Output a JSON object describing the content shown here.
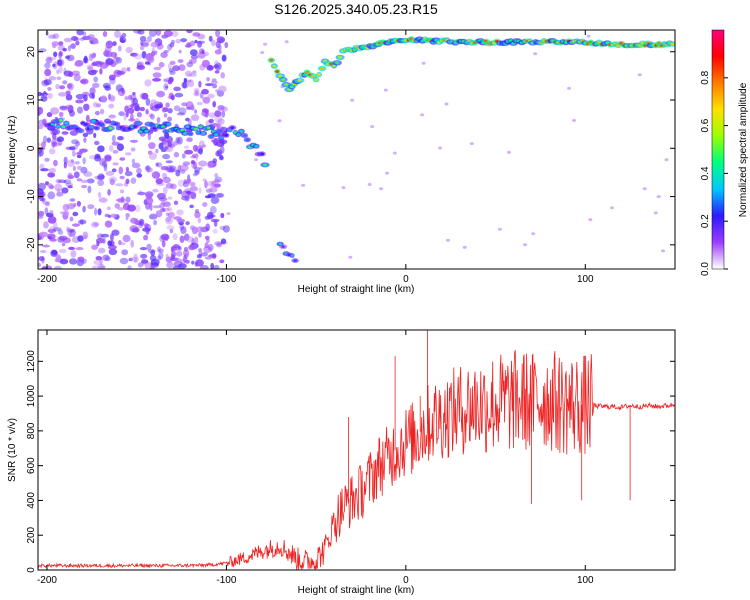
{
  "figure": {
    "title": "S126.2025.340.05.23.R15"
  },
  "chart_data": [
    {
      "type": "heatmap",
      "title": "S126.2025.340.05.23.R15",
      "xlabel": "Height of straight line (km)",
      "ylabel": "Frequency (Hz)",
      "xlim": [
        -205,
        150
      ],
      "ylim": [
        -25,
        24.5
      ],
      "x_ticks": [
        -200,
        -100,
        0,
        100
      ],
      "y_ticks": [
        -20,
        -10,
        0,
        10,
        20
      ],
      "x_tick_labels": [
        "-200",
        "-100",
        "0",
        "100"
      ],
      "y_tick_labels": [
        "-20",
        "-10",
        "0",
        "10",
        "20"
      ],
      "colorbar": {
        "label": "Normalized spectral amplitude",
        "range": [
          0,
          1
        ],
        "ticks": [
          0.0,
          0.2,
          0.4,
          0.6,
          0.8
        ],
        "tick_labels": [
          "0.0",
          "0.2",
          "0.4",
          "0.6",
          "0.8"
        ],
        "colors": [
          "#ffffff",
          "#9b3cff",
          "#2a1aff",
          "#00c8ff",
          "#00ff80",
          "#9bff00",
          "#ffe000",
          "#ff7a00",
          "#ff0000",
          "#ff0080"
        ]
      },
      "features": [
        {
          "name": "noise-region",
          "x_range": [
            -205,
            -100
          ],
          "y_range": [
            -25,
            24.5
          ],
          "amplitude": 0.15
        },
        {
          "name": "carrier-low",
          "points": [
            [
              -200,
              5
            ],
            [
              -180,
              4.5
            ],
            [
              -160,
              5
            ],
            [
              -140,
              4
            ],
            [
              -120,
              4
            ],
            [
              -110,
              3.5
            ],
            [
              -100,
              3
            ],
            [
              -95,
              4
            ],
            [
              -90,
              2
            ],
            [
              -85,
              0.5
            ],
            [
              -80,
              -2
            ],
            [
              -77,
              -3.5
            ]
          ],
          "amplitude": 0.35
        },
        {
          "name": "carrier-high",
          "points": [
            [
              -75,
              18
            ],
            [
              -70,
              15
            ],
            [
              -65,
              12
            ],
            [
              -55,
              16
            ],
            [
              -50,
              14
            ],
            [
              -45,
              18
            ],
            [
              -40,
              17
            ],
            [
              -35,
              20
            ],
            [
              -30,
              20.5
            ],
            [
              -20,
              21
            ],
            [
              -10,
              22
            ],
            [
              0,
              22.5
            ],
            [
              20,
              22.2
            ],
            [
              40,
              22
            ],
            [
              60,
              22
            ],
            [
              80,
              22
            ],
            [
              100,
              22
            ],
            [
              120,
              21.5
            ],
            [
              150,
              21.5
            ]
          ],
          "amplitude": 0.6
        },
        {
          "name": "carrier-alias",
          "points": [
            [
              -70,
              -20
            ],
            [
              -65,
              -22
            ],
            [
              -60,
              -24
            ]
          ],
          "amplitude": 0.3
        }
      ]
    },
    {
      "type": "line",
      "xlabel": "Height of straight line (km)",
      "ylabel": "SNR (10 * v/v)",
      "xlim": [
        -205,
        150
      ],
      "ylim": [
        0,
        1380
      ],
      "x_ticks": [
        -200,
        -100,
        0,
        100
      ],
      "y_ticks": [
        0,
        200,
        400,
        600,
        800,
        1000,
        1200
      ],
      "x_tick_labels": [
        "-200",
        "-100",
        "0",
        "100"
      ],
      "y_tick_labels": [
        "0",
        "200",
        "400",
        "600",
        "800",
        "1000",
        "1200"
      ],
      "series": [
        {
          "name": "SNR",
          "color": "#ee2222",
          "x": [
            -205,
            -190,
            -170,
            -150,
            -130,
            -110,
            -100,
            -90,
            -80,
            -70,
            -60,
            -55,
            -50,
            -45,
            -40,
            -35,
            -30,
            -25,
            -20,
            -15,
            -10,
            -5,
            0,
            5,
            10,
            15,
            20,
            25,
            30,
            35,
            40,
            45,
            50,
            55,
            60,
            65,
            70,
            75,
            80,
            85,
            90,
            95,
            100,
            105,
            110,
            115,
            120,
            125,
            130,
            135,
            140,
            145,
            150
          ],
          "y": [
            25,
            25,
            25,
            25,
            25,
            28,
            40,
            70,
            110,
            140,
            60,
            45,
            60,
            120,
            280,
            360,
            400,
            450,
            520,
            600,
            640,
            700,
            740,
            760,
            820,
            860,
            880,
            900,
            920,
            940,
            950,
            950,
            960,
            960,
            970,
            980,
            960,
            990,
            980,
            960,
            950,
            950,
            950,
            945,
            940,
            940,
            935,
            945,
            940,
            945,
            940,
            945,
            950
          ],
          "spikes": [
            {
              "x": 12,
              "y": 1380
            },
            {
              "x": -32,
              "y": 880
            },
            {
              "x": -6,
              "y": 1230
            },
            {
              "x": 8,
              "y": 1000
            },
            {
              "x": 70,
              "y": 380
            },
            {
              "x": 98,
              "y": 400
            },
            {
              "x": 125,
              "y": 400
            }
          ]
        }
      ]
    }
  ]
}
